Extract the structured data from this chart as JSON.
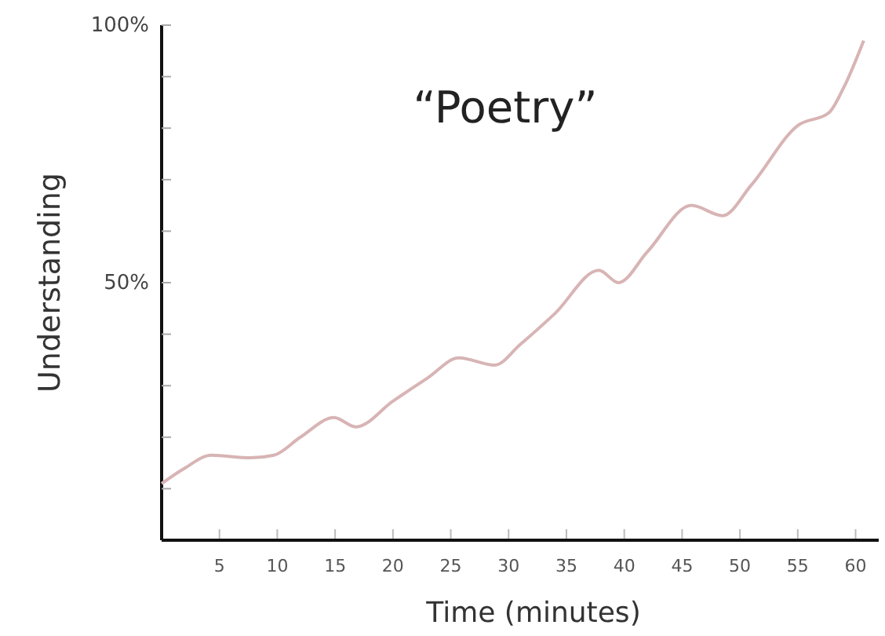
{
  "chart_data": {
    "type": "line",
    "title": "“Poetry”",
    "xlabel": "Time (minutes)",
    "ylabel": "Understanding",
    "xlim": [
      0,
      62
    ],
    "xticks": [
      5,
      10,
      15,
      20,
      25,
      30,
      35,
      40,
      45,
      50,
      55,
      60
    ],
    "ylim": [
      0,
      100
    ],
    "yticks": [
      {
        "value": 10,
        "label": null
      },
      {
        "value": 20,
        "label": null
      },
      {
        "value": 30,
        "label": null
      },
      {
        "value": 40,
        "label": null
      },
      {
        "value": 50,
        "label": "50%"
      },
      {
        "value": 60,
        "label": null
      },
      {
        "value": 70,
        "label": null
      },
      {
        "value": 80,
        "label": null
      },
      {
        "value": 90,
        "label": null
      },
      {
        "value": 100,
        "label": "100%"
      }
    ],
    "grid": false,
    "marker": "none",
    "line_style": "solid",
    "series": [
      {
        "color": "#d8b4b4",
        "x": [
          0,
          2,
          4.3,
          7.7,
          9.7,
          12,
          14.9,
          16.8,
          20,
          23,
          25.7,
          28.8,
          31,
          34,
          37.8,
          39.5,
          42,
          45.8,
          48.5,
          51,
          55,
          57.7,
          59,
          60.7
        ],
        "values": [
          11,
          14,
          16.5,
          16,
          16.5,
          20,
          23.8,
          22,
          27,
          31.5,
          35.4,
          34,
          38,
          44,
          52.4,
          50,
          56,
          65,
          63,
          69,
          80.5,
          83,
          88,
          97
        ]
      }
    ]
  }
}
